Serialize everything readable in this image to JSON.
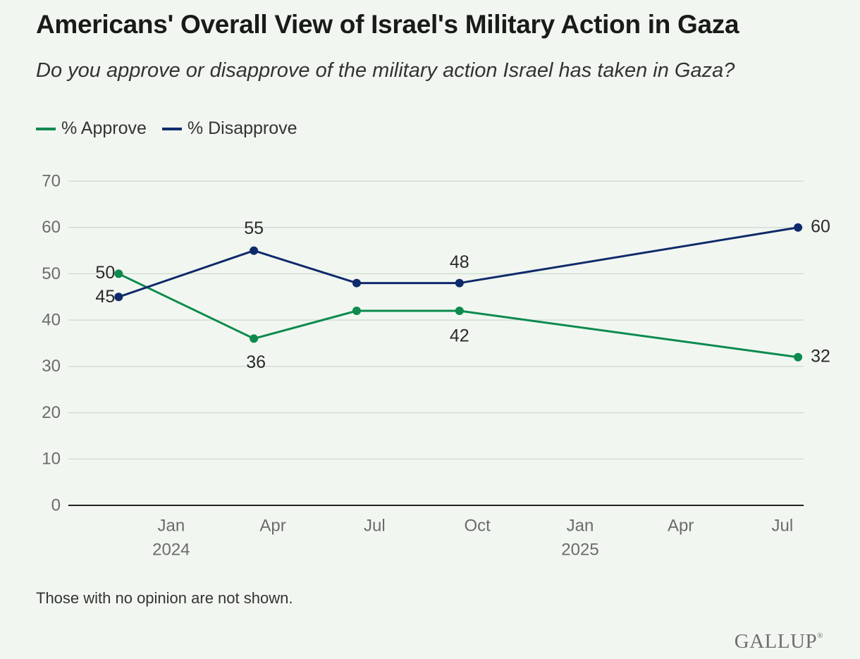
{
  "title": "Americans' Overall View of Israel's Military Action in Gaza",
  "subtitle": "Do you approve or disapprove of the military action Israel has taken in Gaza?",
  "footnote": "Those with no opinion are not shown.",
  "logo": "GALLUP",
  "colors": {
    "approve": "#0d8a4e",
    "disapprove": "#0f2a6b",
    "grid": "#d3dcd3",
    "axis": "#222222"
  },
  "chart_data": {
    "type": "line",
    "ylim": [
      0,
      70
    ],
    "yticks": [
      0,
      10,
      20,
      30,
      40,
      50,
      60,
      70
    ],
    "xlim": [
      "2023-10-01",
      "2025-07-20"
    ],
    "x_ticks": [
      {
        "date": "2024-01-01",
        "label": "Jan",
        "year": "2024"
      },
      {
        "date": "2024-04-01",
        "label": "Apr",
        "year": ""
      },
      {
        "date": "2024-07-01",
        "label": "Jul",
        "year": ""
      },
      {
        "date": "2024-10-01",
        "label": "Oct",
        "year": ""
      },
      {
        "date": "2025-01-01",
        "label": "Jan",
        "year": "2025"
      },
      {
        "date": "2025-04-01",
        "label": "Apr",
        "year": ""
      },
      {
        "date": "2025-07-01",
        "label": "Jul",
        "year": ""
      }
    ],
    "x": [
      "2023-11",
      "2024-03",
      "2024-06",
      "2024-09",
      "2025-07"
    ],
    "series": [
      {
        "name": "% Approve",
        "key": "approve",
        "values": [
          50,
          36,
          42,
          42,
          32
        ],
        "labels": [
          "50",
          "36",
          "",
          "42",
          "32"
        ]
      },
      {
        "name": "% Disapprove",
        "key": "disapprove",
        "values": [
          45,
          55,
          48,
          48,
          60
        ],
        "labels": [
          "45",
          "55",
          "",
          "48",
          "60"
        ]
      }
    ]
  }
}
